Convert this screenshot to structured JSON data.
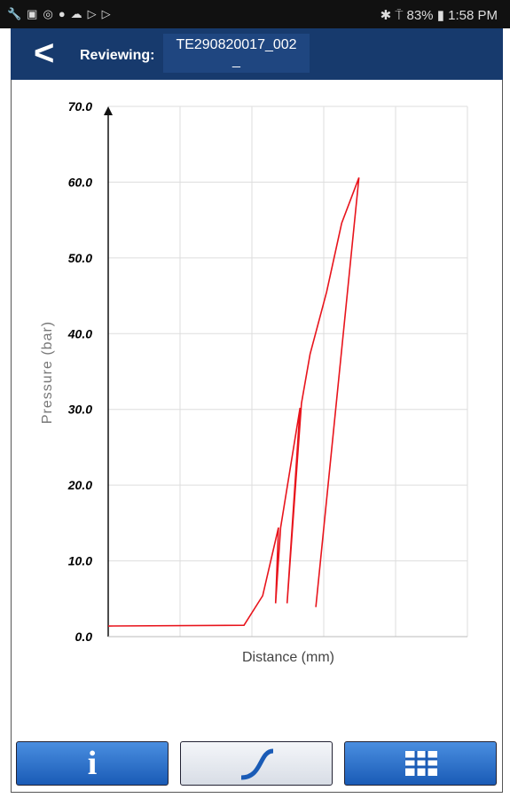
{
  "status_bar": {
    "battery": "83%",
    "time": "1:58 PM"
  },
  "header": {
    "label": "Reviewing:",
    "file_name": "TE290820017_002",
    "file_name_cont": "_"
  },
  "chart_data": {
    "type": "line",
    "x_label": "Distance (mm)",
    "y_label": "Pressure (bar)",
    "x": [
      0,
      1.89,
      2.15,
      2.37,
      2.33,
      2.4,
      2.67,
      2.49,
      2.69,
      2.81,
      3.04,
      3.25,
      3.49,
      2.89
    ],
    "series": [
      {
        "color": "#e8141c",
        "values": [
          1.4,
          1.5,
          5.4,
          14.4,
          4.4,
          14.4,
          30.2,
          4.4,
          30.8,
          37.3,
          45.5,
          54.6,
          60.6,
          3.9
        ]
      }
    ],
    "xlim": [
      0,
      5
    ],
    "ylim": [
      0,
      70
    ],
    "yticks": [
      {
        "value": 0,
        "label": "0.0"
      },
      {
        "value": 10,
        "label": "10.0"
      },
      {
        "value": 20,
        "label": "20.0"
      },
      {
        "value": 30,
        "label": "30.0"
      },
      {
        "value": 40,
        "label": "40.0"
      },
      {
        "value": 50,
        "label": "50.0"
      },
      {
        "value": 60,
        "label": "60.0"
      },
      {
        "value": 70,
        "label": "70.0"
      }
    ],
    "grid": true
  },
  "toolbar": {
    "info_button": "i"
  }
}
